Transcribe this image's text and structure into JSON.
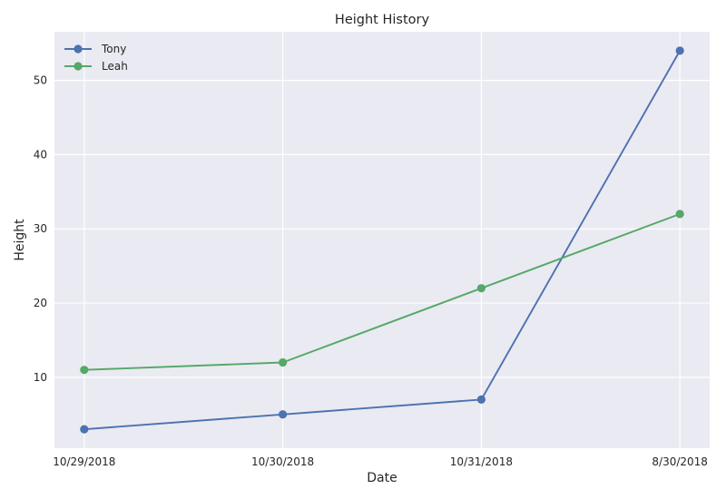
{
  "chart_data": {
    "type": "line",
    "title": "Height History",
    "xlabel": "Date",
    "ylabel": "Height",
    "categories": [
      "10/29/2018",
      "10/30/2018",
      "10/31/2018",
      "8/30/2018"
    ],
    "ylim": [
      0.45,
      56.55
    ],
    "yticks": [
      10,
      20,
      30,
      40,
      50
    ],
    "grid": true,
    "legend_position": "top-left",
    "series": [
      {
        "name": "Tony",
        "color": "#4c72b0",
        "marker": "circle",
        "values": [
          3,
          5,
          7,
          54
        ]
      },
      {
        "name": "Leah",
        "color": "#55a868",
        "marker": "circle",
        "values": [
          11,
          12,
          22,
          32
        ]
      }
    ]
  }
}
